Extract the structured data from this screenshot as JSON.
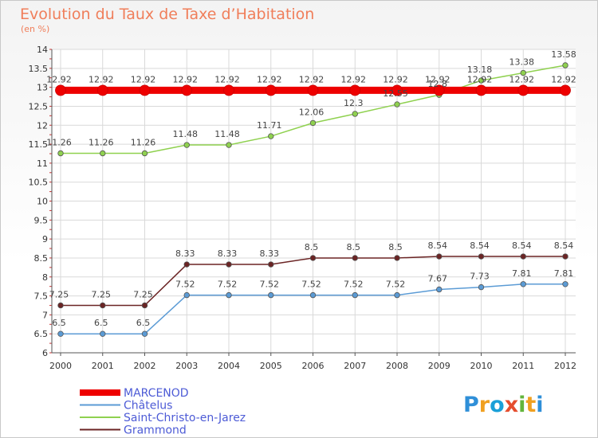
{
  "chart_data": {
    "type": "line",
    "title": "Evolution du Taux de Taxe d’Habitation",
    "subtitle": "(en %)",
    "x": [
      "2000",
      "2001",
      "2002",
      "2003",
      "2004",
      "2005",
      "2006",
      "2007",
      "2008",
      "2009",
      "2010",
      "2011",
      "2012"
    ],
    "y_ticks": [
      "6",
      "6.5",
      "7",
      "7.5",
      "8",
      "8.5",
      "9",
      "9.5",
      "10",
      "10.5",
      "11",
      "11.5",
      "12",
      "12.5",
      "13",
      "13.5",
      "14"
    ],
    "ylim": [
      6,
      14
    ],
    "grid": true,
    "legend_position": "bottom-left",
    "series": [
      {
        "name": "MARCENOD",
        "color": "#ee0000",
        "values": [
          12.92,
          12.92,
          12.92,
          12.92,
          12.92,
          12.92,
          12.92,
          12.92,
          12.92,
          12.92,
          12.92,
          12.92,
          12.92
        ],
        "labels": [
          "12.92",
          "12.92",
          "12.92",
          "12.92",
          "12.92",
          "12.92",
          "12.92",
          "12.92",
          "12.92",
          "12.92",
          "12.92",
          "12.92",
          "12.92"
        ]
      },
      {
        "name": "Châtelus",
        "color": "#5b9bd5",
        "values": [
          6.5,
          6.5,
          6.5,
          7.52,
          7.52,
          7.52,
          7.52,
          7.52,
          7.52,
          7.67,
          7.73,
          7.81,
          7.81
        ],
        "labels": [
          "6.5",
          "6.5",
          "6.5",
          "7.52",
          "7.52",
          "7.52",
          "7.52",
          "7.52",
          "7.52",
          "7.67",
          "7.73",
          "7.81",
          "7.81"
        ]
      },
      {
        "name": "Saint-Christo-en-Jarez",
        "color": "#8fd14f",
        "values": [
          11.26,
          11.26,
          11.26,
          11.48,
          11.48,
          11.71,
          12.06,
          12.3,
          12.55,
          12.8,
          13.18,
          13.38,
          13.58
        ],
        "labels": [
          "11.26",
          "11.26",
          "11.26",
          "11.48",
          "11.48",
          "11.71",
          "12.06",
          "12.3",
          "12.55",
          "12.8",
          "13.18",
          "13.38",
          "13.58"
        ]
      },
      {
        "name": "Grammond",
        "color": "#6b2424",
        "values": [
          7.25,
          7.25,
          7.25,
          8.33,
          8.33,
          8.33,
          8.5,
          8.5,
          8.5,
          8.54,
          8.54,
          8.54,
          8.54
        ],
        "labels": [
          "7.25",
          "7.25",
          "7.25",
          "8.33",
          "8.33",
          "8.33",
          "8.5",
          "8.5",
          "8.5",
          "8.54",
          "8.54",
          "8.54",
          "8.54"
        ]
      }
    ]
  },
  "logo": {
    "text": "Proxiti"
  }
}
